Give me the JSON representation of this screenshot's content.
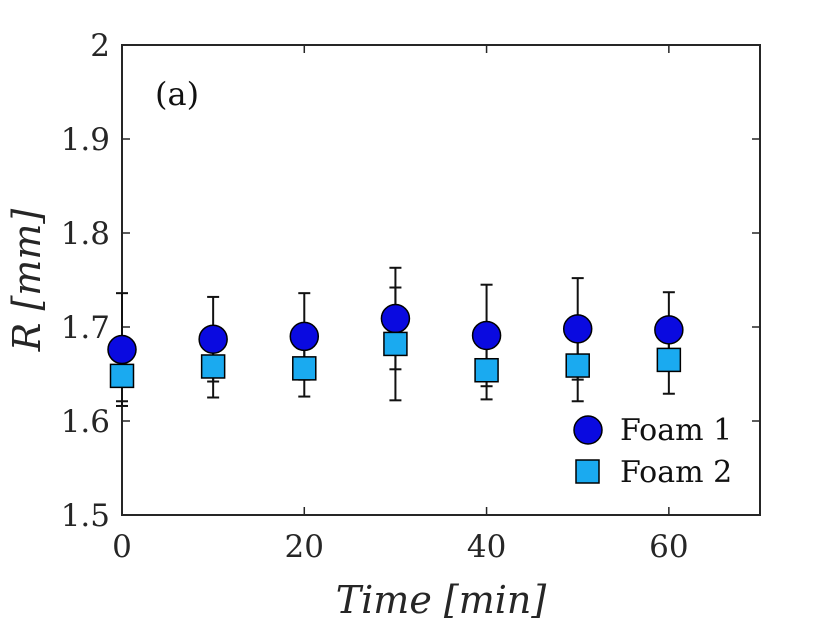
{
  "chart_data": {
    "type": "scatter",
    "panel_label": "(a)",
    "xlabel": "Time [min]",
    "ylabel": "R [mm]",
    "xlim": [
      0,
      70
    ],
    "ylim": [
      1.5,
      2.0
    ],
    "xticks": [
      0,
      20,
      40,
      60
    ],
    "xtick_labels": [
      "0",
      "20",
      "40",
      "60"
    ],
    "yticks": [
      1.5,
      1.6,
      1.7,
      1.8,
      1.9,
      2.0
    ],
    "ytick_labels": [
      "1.5",
      "1.6",
      "1.7",
      "1.8",
      "1.9",
      "2"
    ],
    "legend_location": "bottom-right",
    "series": [
      {
        "name": "Foam 1",
        "marker": "circle",
        "color": "#0a0ae0",
        "x": [
          0,
          10,
          20,
          30,
          40,
          50,
          60
        ],
        "y": [
          1.676,
          1.687,
          1.69,
          1.709,
          1.691,
          1.698,
          1.697
        ],
        "err": [
          0.06,
          0.045,
          0.046,
          0.054,
          0.054,
          0.054,
          0.04
        ]
      },
      {
        "name": "Foam 2",
        "marker": "square",
        "color": "#1aaaf0",
        "x": [
          0,
          10,
          20,
          30,
          40,
          50,
          60
        ],
        "y": [
          1.648,
          1.658,
          1.656,
          1.682,
          1.654,
          1.659,
          1.665
        ],
        "err": [
          0.027,
          0.033,
          0.03,
          0.06,
          0.031,
          0.038,
          0.036
        ]
      }
    ]
  }
}
